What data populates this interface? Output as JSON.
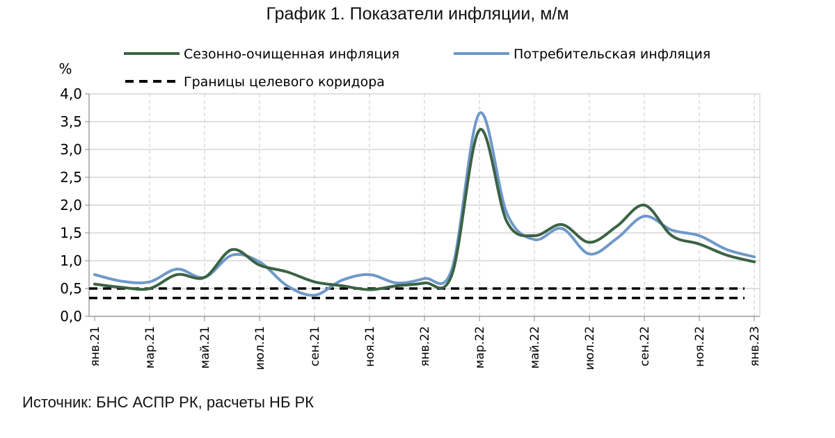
{
  "chart_data": {
    "type": "line",
    "title": "График 1. Показатели инфляции, м/м",
    "ylabel": "%",
    "ylim": [
      0,
      4
    ],
    "yticks": [
      "0,0",
      "0,5",
      "1,0",
      "1,5",
      "2,0",
      "2,5",
      "3,0",
      "3,5",
      "4,0"
    ],
    "x_tick_labels": [
      "янв.21",
      "мар.21",
      "май.21",
      "июл.21",
      "сен.21",
      "ноя.21",
      "янв.22",
      "мар.22",
      "май.22",
      "июл.22",
      "сен.22",
      "ноя.22",
      "янв.23"
    ],
    "x_months": [
      "янв.21",
      "фев.21",
      "мар.21",
      "апр.21",
      "май.21",
      "июн.21",
      "июл.21",
      "авг.21",
      "сен.21",
      "окт.21",
      "ноя.21",
      "дек.21",
      "янв.22",
      "фев.22",
      "мар.22",
      "апр.22",
      "май.22",
      "июн.22",
      "июл.22",
      "авг.22",
      "сен.22",
      "окт.22",
      "ноя.22",
      "дек.22",
      "янв.23"
    ],
    "grid": true,
    "legend_position": "top",
    "series": [
      {
        "name": "Сезонно-очищенная инфляция",
        "color": "#3b6244",
        "style": "solid",
        "values": [
          0.58,
          0.52,
          0.5,
          0.75,
          0.7,
          1.2,
          0.92,
          0.8,
          0.62,
          0.55,
          0.48,
          0.55,
          0.6,
          0.75,
          3.35,
          1.7,
          1.45,
          1.65,
          1.33,
          1.62,
          2.0,
          1.45,
          1.3,
          1.1,
          0.98
        ]
      },
      {
        "name": "Потребительская инфляция",
        "color": "#6f98c9",
        "style": "solid",
        "values": [
          0.75,
          0.63,
          0.62,
          0.85,
          0.7,
          1.1,
          0.98,
          0.55,
          0.38,
          0.65,
          0.75,
          0.6,
          0.68,
          0.85,
          3.65,
          1.85,
          1.38,
          1.58,
          1.12,
          1.4,
          1.8,
          1.55,
          1.45,
          1.2,
          1.07
        ]
      }
    ],
    "corridor": {
      "name": "Границы целевого коридора",
      "color": "#000000",
      "style": "dashed",
      "values": [
        0.5,
        0.33
      ]
    },
    "source": "Источник: БНС АСПР РК, расчеты НБ РК"
  }
}
